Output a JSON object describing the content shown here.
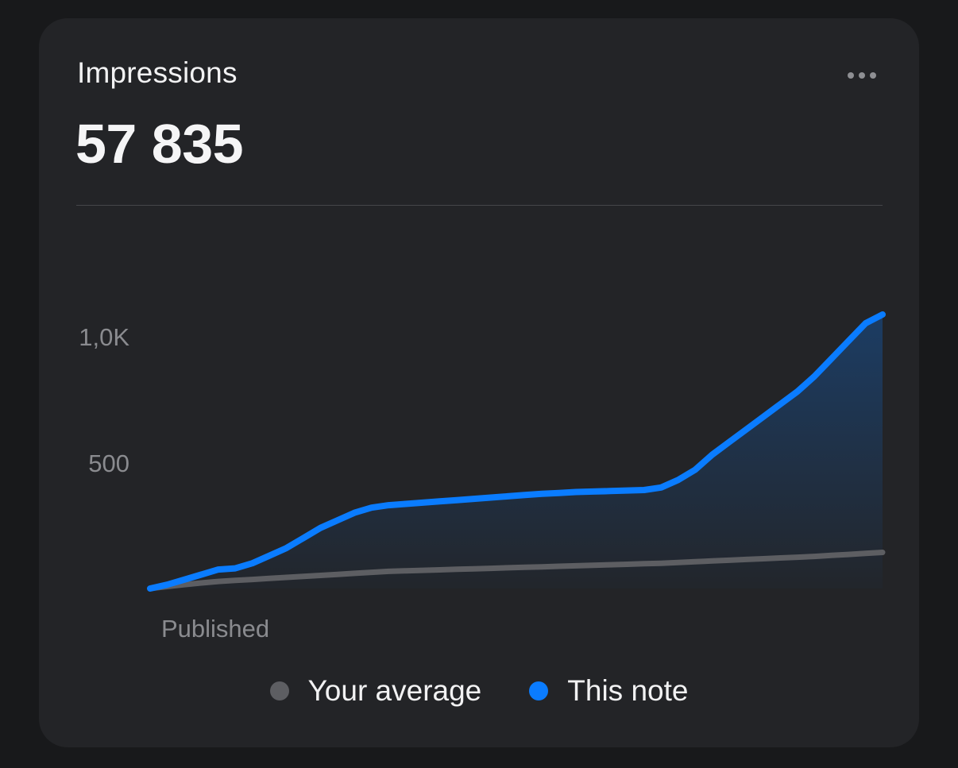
{
  "card": {
    "title": "Impressions",
    "total": "57 835",
    "more_icon": "more-horizontal-icon"
  },
  "colors": {
    "background": "#18191b",
    "card": "#232427",
    "this_note": "#0a7cff",
    "average": "#5d5e62",
    "tick_text": "#8a8b8f"
  },
  "chart_data": {
    "type": "area",
    "title": "Impressions",
    "x_start_label": "Published",
    "y_ticks": [
      {
        "value": 1000,
        "label": "1,0K"
      },
      {
        "value": 500,
        "label": "500"
      }
    ],
    "ylim": [
      0,
      1100
    ],
    "grid": false,
    "legend_position": "bottom-center",
    "series": [
      {
        "name": "This note",
        "color": "#0a7cff",
        "filled": true,
        "values": [
          0,
          15,
          35,
          55,
          75,
          80,
          100,
          130,
          160,
          200,
          240,
          270,
          300,
          320,
          330,
          335,
          340,
          345,
          350,
          355,
          360,
          365,
          370,
          375,
          378,
          382,
          384,
          386,
          388,
          390,
          400,
          430,
          470,
          530,
          580,
          630,
          680,
          730,
          780,
          840,
          910,
          980,
          1050,
          1085
        ]
      },
      {
        "name": "Your average",
        "color": "#5d5e62",
        "filled": false,
        "values": [
          0,
          8,
          15,
          22,
          28,
          32,
          36,
          40,
          44,
          48,
          52,
          56,
          60,
          64,
          68,
          70,
          72,
          74,
          76,
          78,
          80,
          82,
          84,
          86,
          88,
          90,
          92,
          94,
          96,
          98,
          100,
          103,
          106,
          109,
          112,
          115,
          118,
          121,
          124,
          127,
          131,
          135,
          139,
          143
        ]
      }
    ]
  },
  "legend": [
    {
      "label": "Your average",
      "color": "#5d5e62"
    },
    {
      "label": "This note",
      "color": "#0a7cff"
    }
  ]
}
